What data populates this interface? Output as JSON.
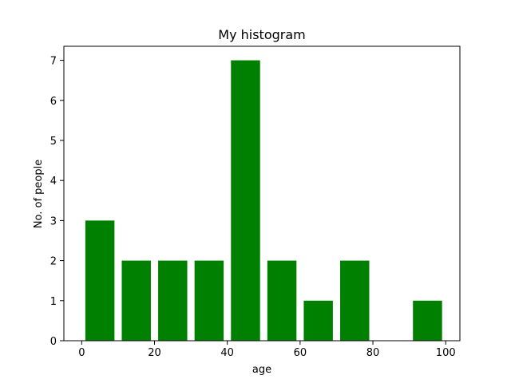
{
  "chart_data": {
    "type": "bar",
    "title": "My histogram",
    "xlabel": "age",
    "ylabel": "No. of people",
    "bar_color": "#008000",
    "bins": [
      {
        "x0": 1,
        "x1": 9,
        "value": 3
      },
      {
        "x0": 11,
        "x1": 19,
        "value": 2
      },
      {
        "x0": 21,
        "x1": 29,
        "value": 2
      },
      {
        "x0": 31,
        "x1": 39,
        "value": 2
      },
      {
        "x0": 41,
        "x1": 49,
        "value": 7
      },
      {
        "x0": 51,
        "x1": 59,
        "value": 2
      },
      {
        "x0": 61,
        "x1": 69,
        "value": 1
      },
      {
        "x0": 71,
        "x1": 79,
        "value": 2
      },
      {
        "x0": 81,
        "x1": 89,
        "value": 0
      },
      {
        "x0": 91,
        "x1": 99,
        "value": 1
      }
    ],
    "xlim": [
      -4.9,
      103.9
    ],
    "ylim": [
      0,
      7.35
    ],
    "xticks": [
      0,
      20,
      40,
      60,
      80,
      100
    ],
    "yticks": [
      0,
      1,
      2,
      3,
      4,
      5,
      6,
      7
    ],
    "grid": false,
    "legend": "none"
  }
}
